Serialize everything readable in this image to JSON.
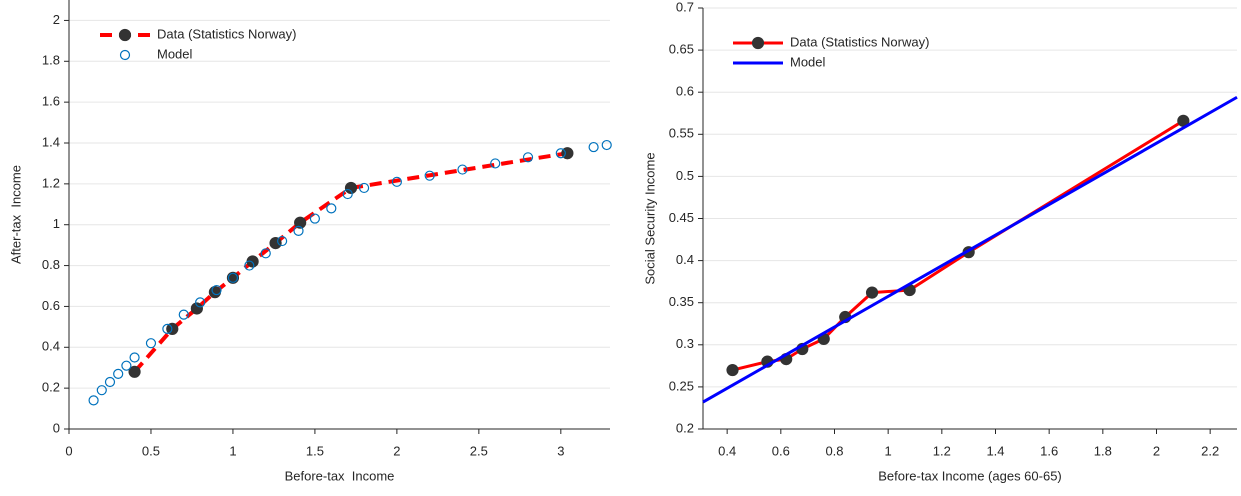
{
  "chart_data": [
    {
      "type": "line",
      "xlabel": "Before-tax  Income",
      "ylabel": "After-tax  Income",
      "xlim": [
        0,
        3.3
      ],
      "ylim": [
        0,
        2.1
      ],
      "xticks": [
        0,
        0.5,
        1,
        1.5,
        2,
        2.5,
        3
      ],
      "yticks": [
        0,
        0.2,
        0.4,
        0.6,
        0.8,
        1,
        1.2,
        1.4,
        1.6,
        1.8,
        2
      ],
      "grid": true,
      "legend": "upper left",
      "series": [
        {
          "name": "Data (Statistics Norway)",
          "color": "#ff0000",
          "dash": true,
          "line": true,
          "marker": "filled",
          "marker_color": "#333333",
          "x": [
            0.4,
            0.63,
            0.78,
            0.89,
            1.0,
            1.12,
            1.26,
            1.41,
            1.72,
            3.04
          ],
          "values": [
            0.28,
            0.49,
            0.59,
            0.67,
            0.74,
            0.82,
            0.91,
            1.01,
            1.18,
            1.35
          ]
        },
        {
          "name": "Model",
          "color": "#0072bd",
          "line": false,
          "marker": "open",
          "x": [
            0.15,
            0.2,
            0.25,
            0.3,
            0.35,
            0.4,
            0.5,
            0.6,
            0.7,
            0.8,
            0.9,
            1.0,
            1.1,
            1.2,
            1.3,
            1.4,
            1.5,
            1.6,
            1.7,
            1.8,
            2.0,
            2.2,
            2.4,
            2.6,
            2.8,
            3.0,
            3.2,
            3.28
          ],
          "values": [
            0.14,
            0.19,
            0.23,
            0.27,
            0.31,
            0.35,
            0.42,
            0.49,
            0.56,
            0.62,
            0.68,
            0.74,
            0.8,
            0.86,
            0.92,
            0.97,
            1.03,
            1.08,
            1.15,
            1.18,
            1.21,
            1.24,
            1.27,
            1.3,
            1.33,
            1.35,
            1.38,
            1.39
          ]
        }
      ]
    },
    {
      "type": "line",
      "xlabel": "Before-tax Income (ages 60-65)",
      "ylabel": "Social Security Income",
      "xlim": [
        0.31,
        2.3
      ],
      "ylim": [
        0.2,
        0.7
      ],
      "xticks": [
        0.4,
        0.6,
        0.8,
        1,
        1.2,
        1.4,
        1.6,
        1.8,
        2,
        2.2
      ],
      "yticks": [
        0.2,
        0.25,
        0.3,
        0.35,
        0.4,
        0.45,
        0.5,
        0.55,
        0.6,
        0.65,
        0.7
      ],
      "grid": true,
      "legend": "upper left",
      "series": [
        {
          "name": "Data (Statistics Norway)",
          "color": "#ff0000",
          "dash": false,
          "line": true,
          "marker": "filled",
          "marker_color": "#333333",
          "x": [
            0.42,
            0.55,
            0.62,
            0.68,
            0.76,
            0.84,
            0.94,
            1.08,
            1.3,
            2.1
          ],
          "values": [
            0.27,
            0.28,
            0.283,
            0.295,
            0.307,
            0.333,
            0.362,
            0.365,
            0.41,
            0.566
          ]
        },
        {
          "name": "Model",
          "color": "#0000ff",
          "dash": false,
          "line": true,
          "marker": "none",
          "x": [
            0.31,
            2.3
          ],
          "values": [
            0.232,
            0.594
          ]
        }
      ]
    }
  ]
}
